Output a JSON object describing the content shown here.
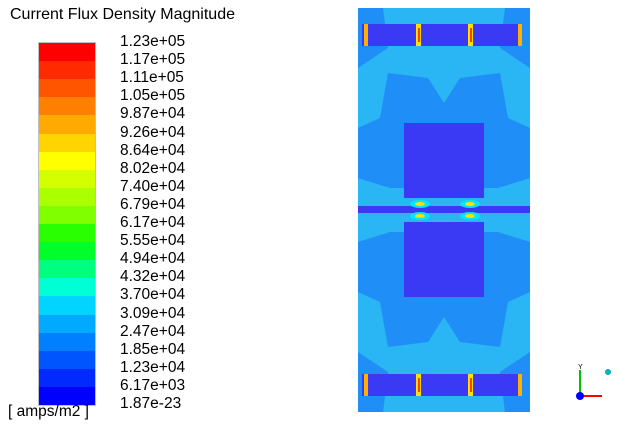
{
  "legend": {
    "title": "Current Flux Density Magnitude",
    "units": "amps/m2",
    "labels": [
      "1.23e+05",
      "1.17e+05",
      "1.11e+05",
      "1.05e+05",
      "9.87e+04",
      "9.26e+04",
      "8.64e+04",
      "8.02e+04",
      "7.40e+04",
      "6.79e+04",
      "6.17e+04",
      "5.55e+04",
      "4.94e+04",
      "4.32e+04",
      "3.70e+04",
      "3.09e+04",
      "2.47e+04",
      "1.85e+04",
      "1.23e+04",
      "6.17e+03",
      "1.87e-23"
    ],
    "colors": [
      "#ff0000",
      "#ff2a00",
      "#ff5500",
      "#ff8000",
      "#ffaa00",
      "#ffd400",
      "#ffff00",
      "#d4ff00",
      "#aaff00",
      "#80ff00",
      "#2aff00",
      "#00ff2a",
      "#00ff80",
      "#00ffd4",
      "#00d4ff",
      "#00aaff",
      "#0080ff",
      "#0055ff",
      "#002aff",
      "#0000ff"
    ]
  },
  "plot": {
    "palette": {
      "background": "#0080ff",
      "light": "#2ab5f4",
      "deep": "#3a3af5",
      "mid": "#1f8ef7",
      "hot_yellow": "#ffe000",
      "hot_red": "#ff4000",
      "cyan": "#00e6ff"
    }
  },
  "triad": {
    "icon": "coordinate-axes-icon",
    "x_color": "#ff0000",
    "y_color": "#00c000",
    "z_color": "#0000ff"
  }
}
